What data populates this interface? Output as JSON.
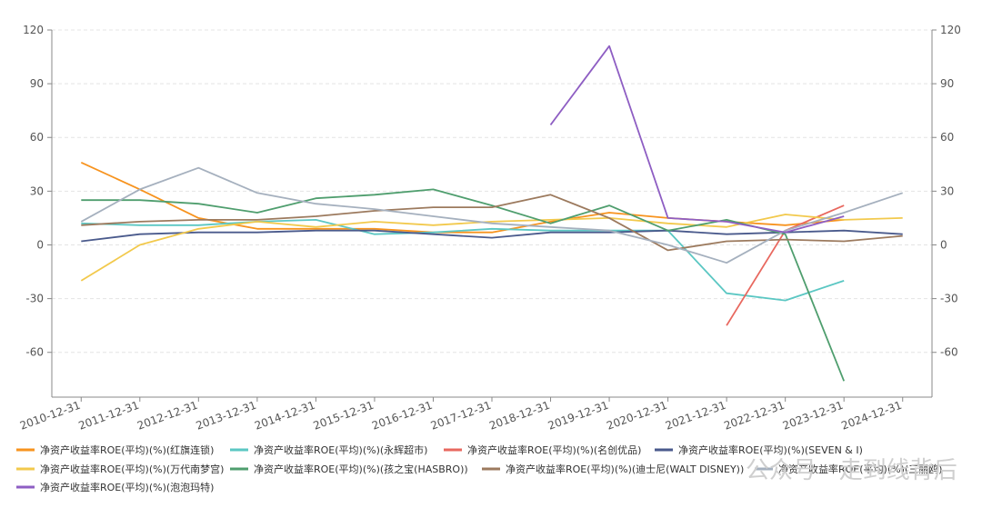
{
  "chart_data": {
    "type": "line",
    "x": [
      "2010-12-31",
      "2011-12-31",
      "2012-12-31",
      "2013-12-31",
      "2014-12-31",
      "2015-12-31",
      "2016-12-31",
      "2017-12-31",
      "2018-12-31",
      "2019-12-31",
      "2020-12-31",
      "2021-12-31",
      "2022-12-31",
      "2023-12-31",
      "2024-12-31"
    ],
    "ylim": [
      -85,
      120
    ],
    "yticks": [
      120,
      90,
      60,
      30,
      0,
      -30,
      -60
    ],
    "grid": true,
    "legend_position": "bottom",
    "series": [
      {
        "name": "净资产收益率ROE(平均)(%)(红旗连锁)",
        "color": "#f7931e",
        "values": [
          46,
          31,
          15,
          9,
          9,
          9,
          7,
          7,
          13,
          18,
          15,
          13,
          11,
          14,
          null
        ]
      },
      {
        "name": "净资产收益率ROE(平均)(%)(永辉超市)",
        "color": "#5bc7c3",
        "values": [
          12,
          11,
          11,
          13,
          14,
          6,
          7,
          9,
          8,
          8,
          8,
          -27,
          -31,
          -20,
          null
        ]
      },
      {
        "name": "净资产收益率ROE(平均)(%)(名创优品)",
        "color": "#e8685f",
        "values": [
          null,
          null,
          null,
          null,
          null,
          null,
          null,
          null,
          null,
          null,
          null,
          -45,
          8,
          22,
          null
        ]
      },
      {
        "name": "净资产收益率ROE(平均)(%)(SEVEN & I)",
        "color": "#4a5a8c",
        "values": [
          2,
          6,
          7,
          7,
          8,
          8,
          6,
          4,
          7,
          7,
          8,
          6,
          7,
          8,
          6
        ]
      },
      {
        "name": "净资产收益率ROE(平均)(%)(万代南梦宫)",
        "color": "#f2c94c",
        "values": [
          -20,
          0,
          9,
          13,
          10,
          13,
          11,
          13,
          14,
          15,
          12,
          10,
          17,
          14,
          15
        ]
      },
      {
        "name": "净资产收益率ROE(平均)(%)(孩之宝(HASBRO))",
        "color": "#4f9e6e",
        "values": [
          25,
          25,
          23,
          18,
          26,
          28,
          31,
          22,
          12,
          22,
          8,
          14,
          6,
          -76,
          null
        ]
      },
      {
        "name": "净资产收益率ROE(平均)(%)(迪士尼(WALT DISNEY))",
        "color": "#9c7a5e",
        "values": [
          11,
          13,
          14,
          14,
          16,
          19,
          21,
          21,
          28,
          15,
          -3,
          2,
          3,
          2,
          5
        ]
      },
      {
        "name": "净资产收益率ROE(平均)(%)(三丽鸥)",
        "color": "#a5b0be",
        "values": [
          13,
          31,
          43,
          29,
          23,
          20,
          16,
          12,
          10,
          8,
          0,
          -10,
          8,
          18,
          29
        ]
      },
      {
        "name": "净资产收益率ROE(平均)(%)(泡泡玛特)",
        "color": "#8e5ec3",
        "values": [
          null,
          null,
          null,
          null,
          null,
          null,
          null,
          null,
          67,
          111,
          15,
          13,
          7,
          16,
          null
        ]
      }
    ]
  },
  "watermark": "公众号 · 走到线背后"
}
